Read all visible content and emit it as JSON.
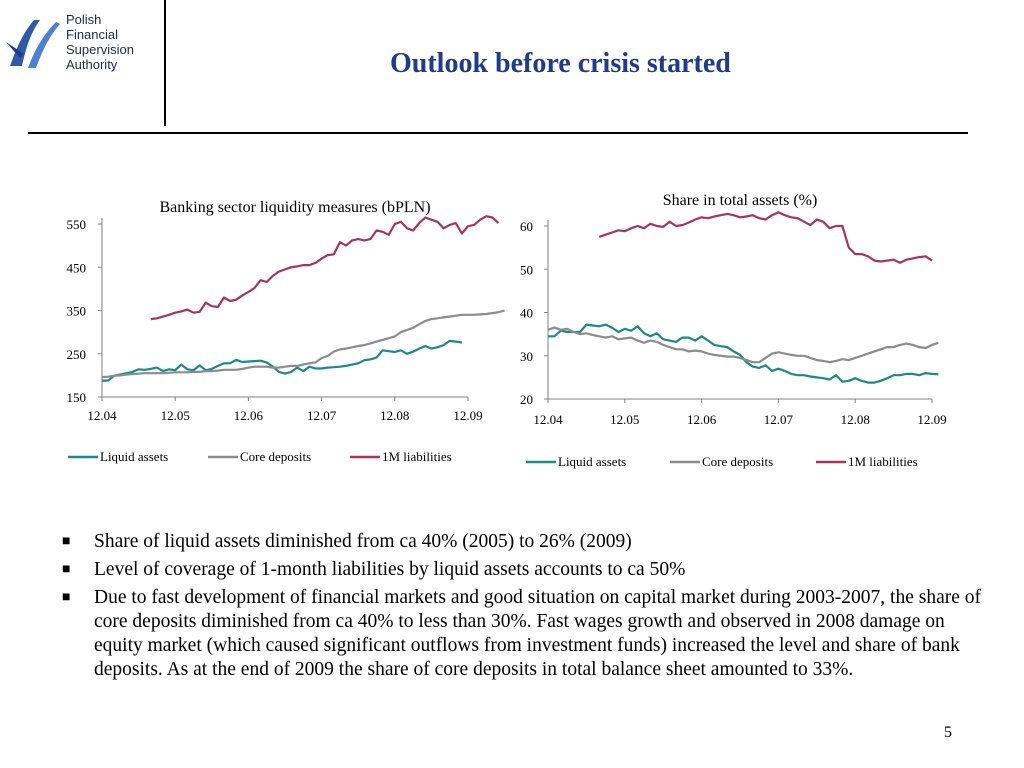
{
  "header": {
    "logo_lines": [
      "Polish",
      "Financial",
      "Supervision",
      "Authority"
    ],
    "title": "Outlook before crisis started"
  },
  "colors": {
    "title": "#1f3c8c",
    "liquid": "#1b8a86",
    "core": "#8c8c8c",
    "m1": "#a8335f"
  },
  "chart_data": [
    {
      "type": "line",
      "title": "Banking sector liquidity measures (bPLN)",
      "x_ticks": [
        "12.04",
        "12.05",
        "12.06",
        "12.07",
        "12.08",
        "12.09"
      ],
      "ylim": [
        150,
        550
      ],
      "y_ticks": [
        "150",
        "250",
        "350",
        "450",
        "550"
      ],
      "grid": false,
      "legend": "bottom",
      "series": [
        {
          "name": "Liquid assets",
          "color_key": "liquid",
          "start": 0,
          "values": [
            188,
            188,
            199,
            202,
            205,
            208,
            214,
            213,
            215,
            218,
            210,
            214,
            212,
            225,
            214,
            212,
            223,
            212,
            215,
            222,
            228,
            228,
            236,
            231,
            232,
            233,
            234,
            230,
            220,
            208,
            204,
            208,
            218,
            210,
            220,
            216,
            216,
            218,
            219,
            220,
            222,
            225,
            228,
            235,
            237,
            241,
            258,
            256,
            254,
            258,
            250,
            255,
            262,
            268,
            262,
            265,
            270,
            280,
            278,
            276
          ]
        },
        {
          "name": "Core deposits",
          "color_key": "core",
          "start": 0,
          "values": [
            196,
            197,
            199,
            200,
            202,
            203,
            204,
            205,
            205,
            205,
            205,
            206,
            207,
            207,
            207,
            208,
            208,
            210,
            210,
            211,
            213,
            213,
            213,
            215,
            218,
            220,
            220,
            220,
            218,
            218,
            220,
            222,
            222,
            225,
            228,
            230,
            240,
            245,
            255,
            260,
            262,
            265,
            268,
            270,
            274,
            278,
            282,
            286,
            290,
            300,
            305,
            310,
            318,
            326,
            330,
            332,
            334,
            336,
            338,
            340,
            340,
            340,
            341,
            342,
            344,
            346,
            350
          ]
        },
        {
          "name": "1M liabilities",
          "color_key": "m1",
          "start": 8,
          "values": [
            330,
            332,
            336,
            340,
            345,
            348,
            352,
            345,
            347,
            368,
            360,
            358,
            380,
            372,
            375,
            385,
            393,
            402,
            420,
            416,
            430,
            440,
            445,
            450,
            452,
            455,
            455,
            460,
            470,
            478,
            480,
            508,
            500,
            512,
            515,
            512,
            515,
            535,
            532,
            525,
            550,
            555,
            540,
            535,
            552,
            565,
            560,
            555,
            540,
            548,
            552,
            528,
            545,
            548,
            560,
            568,
            565,
            552
          ]
        }
      ]
    },
    {
      "type": "line",
      "title": "Share in total assets (%)",
      "x_ticks": [
        "12.04",
        "12.05",
        "12.06",
        "12.07",
        "12.08",
        "12.09"
      ],
      "ylim": [
        20,
        60
      ],
      "y_ticks": [
        "20",
        "30",
        "40",
        "50",
        "60"
      ],
      "grid": false,
      "legend": "bottom",
      "series": [
        {
          "name": "Liquid assets",
          "color_key": "liquid",
          "start": 0,
          "values": [
            34.5,
            34.5,
            35.8,
            35.5,
            35.5,
            35.5,
            37.2,
            37,
            36.8,
            37.2,
            36.5,
            35.5,
            36.2,
            35.8,
            36.8,
            35.2,
            34.5,
            35.2,
            33.8,
            33.5,
            33.2,
            34.2,
            34.2,
            33.5,
            34.5,
            33.5,
            32.5,
            32.2,
            32,
            31,
            30.2,
            28.5,
            27.5,
            27.2,
            27.8,
            26.5,
            27,
            26.5,
            25.8,
            25.5,
            25.5,
            25.2,
            25,
            24.8,
            24.5,
            25.5,
            24,
            24.2,
            24.8,
            24.2,
            23.8,
            23.8,
            24.2,
            24.8,
            25.5,
            25.5,
            25.8,
            25.8,
            25.5,
            26,
            25.8,
            25.7
          ]
        },
        {
          "name": "Core deposits",
          "color_key": "core",
          "start": 0,
          "values": [
            36,
            36.5,
            36,
            36.2,
            35.5,
            35,
            35.2,
            34.8,
            34.5,
            34.2,
            34.5,
            33.8,
            34,
            34.2,
            33.5,
            33,
            33.5,
            33.2,
            32.5,
            32,
            31.5,
            31.5,
            31,
            31.2,
            31,
            30.5,
            30.2,
            30,
            29.8,
            29.8,
            29.5,
            29,
            28.5,
            28.5,
            29.5,
            30.5,
            30.8,
            30.5,
            30.2,
            30,
            30,
            29.5,
            29,
            28.8,
            28.5,
            28.8,
            29.2,
            29,
            29.5,
            30,
            30.5,
            31,
            31.5,
            32,
            32,
            32.5,
            32.8,
            32.5,
            32,
            31.8,
            32.5,
            33
          ]
        },
        {
          "name": "1M liabilities",
          "color_key": "m1",
          "start": 8,
          "values": [
            57.5,
            58,
            58.5,
            59,
            58.8,
            59.5,
            60,
            59.5,
            60.5,
            60,
            59.8,
            61,
            60,
            60.2,
            60.8,
            61.5,
            62,
            61.8,
            62.2,
            62.5,
            62.8,
            62.5,
            62,
            62.2,
            62.5,
            61.8,
            61.5,
            62.5,
            63.2,
            62.5,
            62,
            61.8,
            61,
            60.2,
            61.5,
            61,
            59.5,
            60,
            60,
            55,
            53.5,
            53.5,
            53,
            52,
            51.8,
            52,
            52.2,
            51.5,
            52.2,
            52.5,
            52.8,
            53,
            52
          ]
        }
      ]
    }
  ],
  "bullets": [
    "Share of liquid assets diminished from ca 40% (2005) to 26% (2009)",
    "Level of coverage of 1-month liabilities by liquid assets accounts to ca 50%",
    "Due to fast development of financial markets and good situation on capital market during 2003-2007, the share of core deposits diminished from ca 40% to less than 30%. Fast wages growth and observed in 2008 damage on equity market (which caused significant outflows from investment funds)  increased the level and share of bank deposits. As at the end of 2009 the share of core deposits in total balance sheet amounted to 33%."
  ],
  "bullet_mark": "■",
  "page_number": "5"
}
